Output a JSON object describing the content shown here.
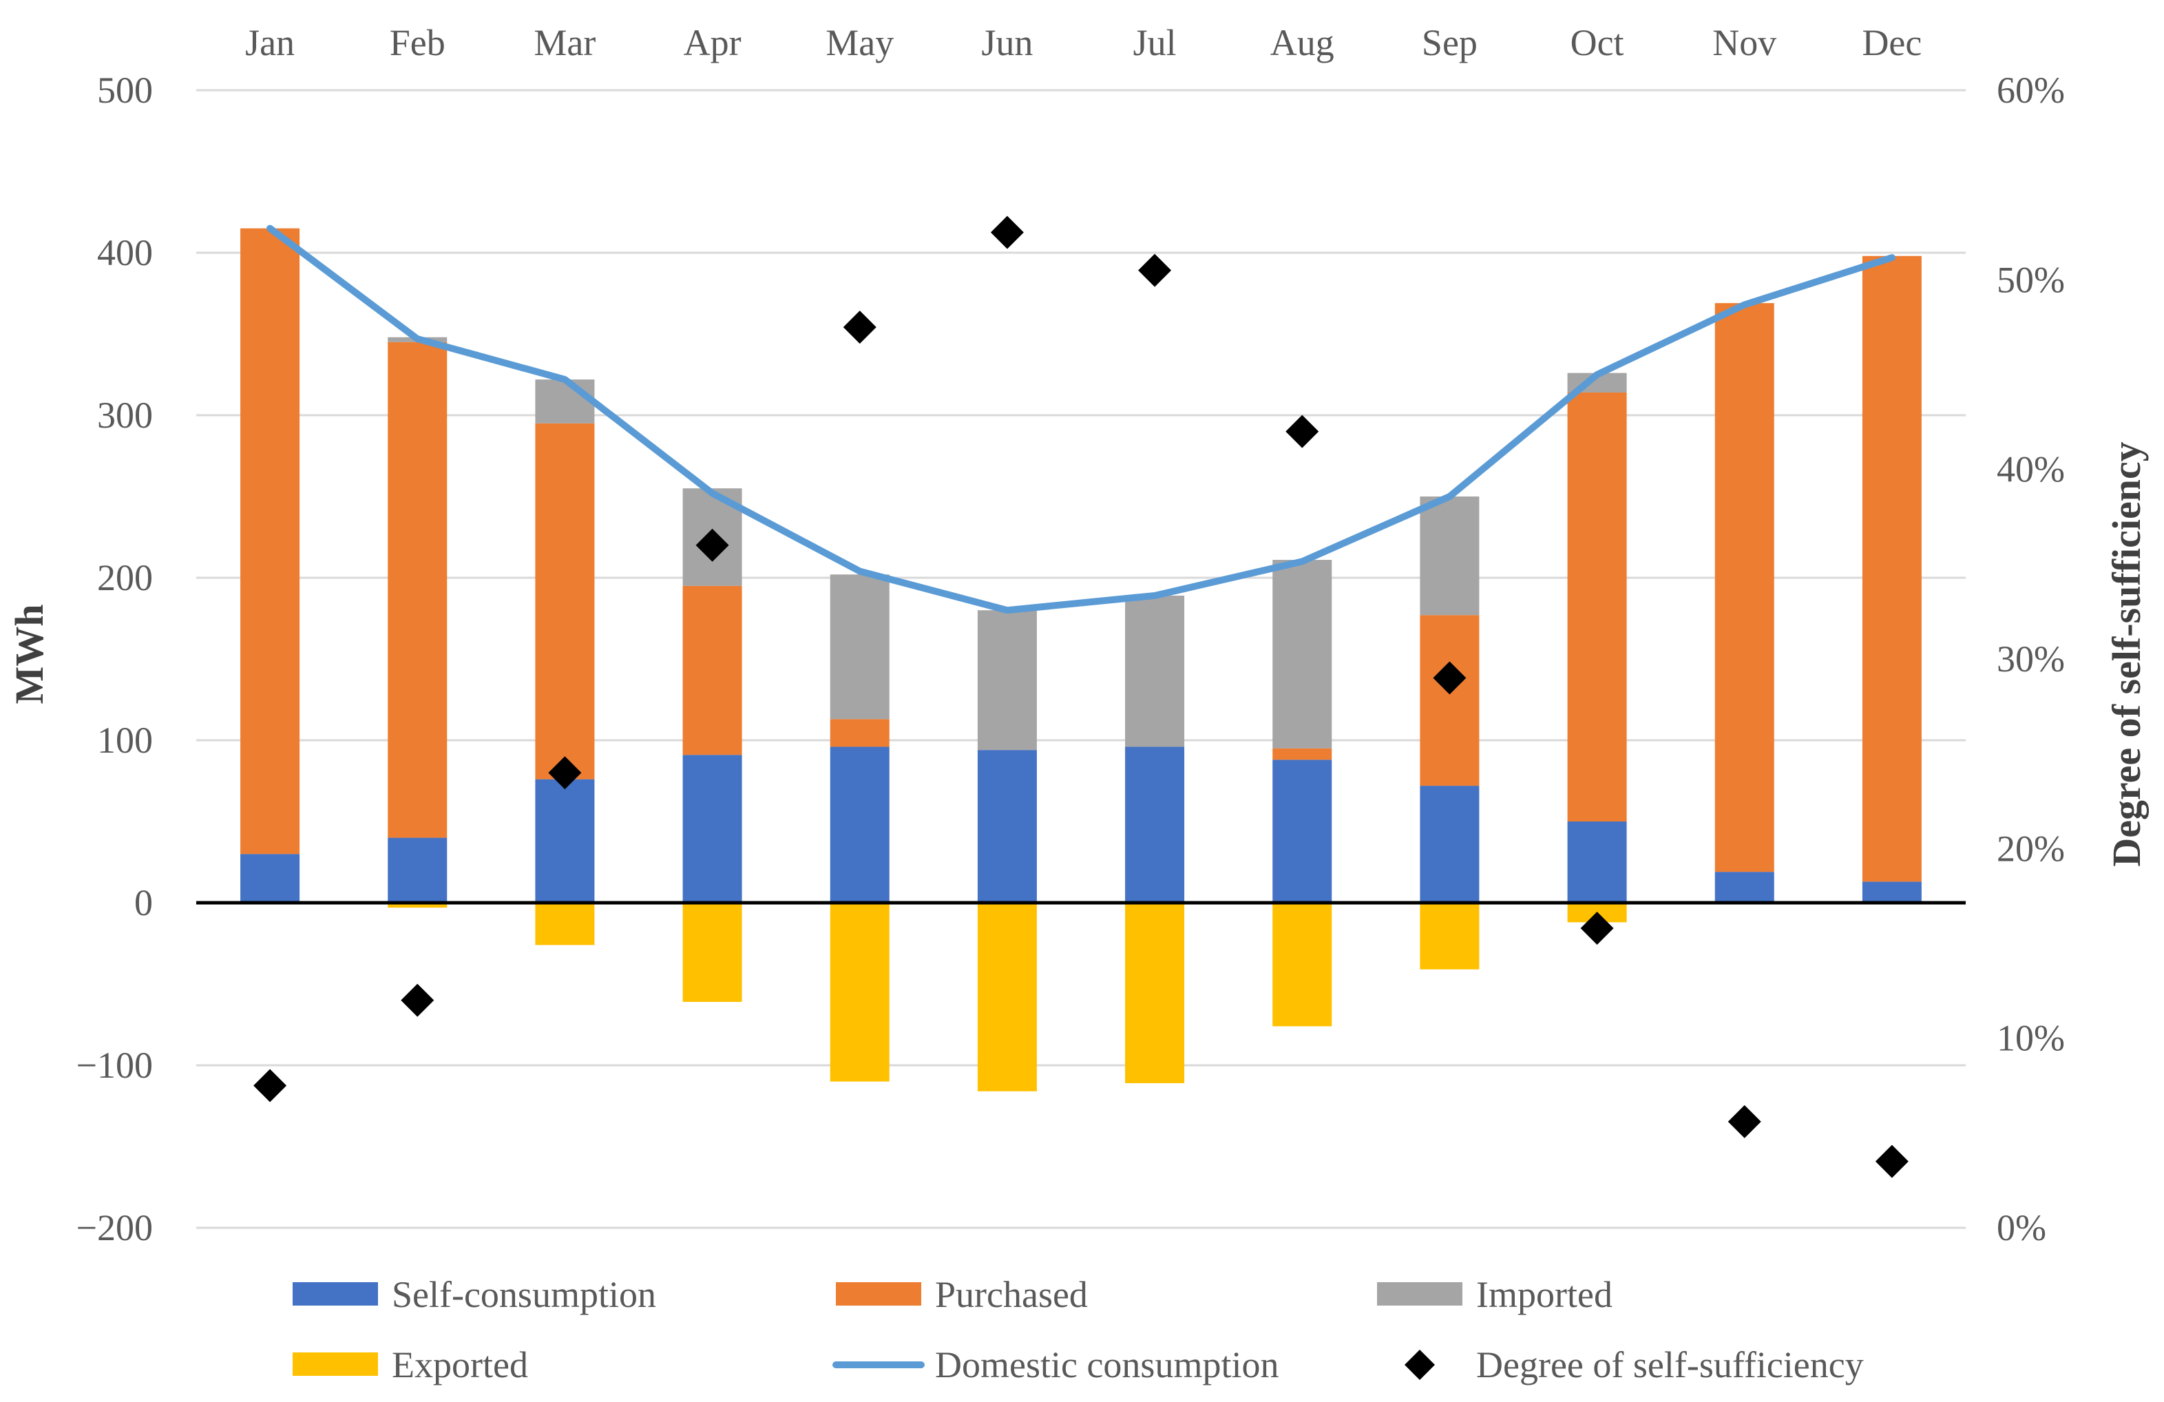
{
  "chart_data": {
    "type": "bar",
    "subtype": "stacked-bar-with-line-and-markers",
    "categories": [
      "Jan",
      "Feb",
      "Mar",
      "Apr",
      "May",
      "Jun",
      "Jul",
      "Aug",
      "Sep",
      "Oct",
      "Nov",
      "Dec"
    ],
    "series": [
      {
        "name": "Self-consumption",
        "kind": "bar",
        "axis": "left",
        "color": "#4472C4",
        "values": [
          30,
          40,
          76,
          91,
          96,
          94,
          96,
          88,
          72,
          50,
          19,
          13
        ]
      },
      {
        "name": "Purchased",
        "kind": "bar",
        "axis": "left",
        "color": "#ED7D31",
        "values": [
          385,
          305,
          219,
          104,
          17,
          0,
          0,
          7,
          105,
          264,
          350,
          385
        ]
      },
      {
        "name": "Imported",
        "kind": "bar",
        "axis": "left",
        "color": "#A5A5A5",
        "values": [
          0,
          3,
          27,
          60,
          89,
          86,
          93,
          116,
          73,
          12,
          0,
          0
        ]
      },
      {
        "name": "Exported",
        "kind": "bar",
        "axis": "left",
        "color": "#FFC000",
        "values": [
          0,
          -3,
          -26,
          -61,
          -110,
          -116,
          -111,
          -76,
          -41,
          -12,
          0,
          0
        ]
      },
      {
        "name": "Domestic consumption",
        "kind": "line",
        "axis": "left",
        "color": "#5B9BD5",
        "values": [
          415,
          347,
          322,
          252,
          204,
          180,
          189,
          210,
          250,
          325,
          368,
          397
        ]
      },
      {
        "name": "Degree of self-sufficiency",
        "kind": "marker",
        "axis": "right",
        "color": "#000000",
        "values": [
          7.5,
          12.0,
          24.0,
          36.0,
          47.5,
          52.5,
          50.5,
          42.0,
          29.0,
          15.8,
          5.6,
          3.5
        ]
      }
    ],
    "ylabel": "MWh",
    "y2label": "Degree of self-sufficiency",
    "ylim": [
      -200,
      500
    ],
    "y2lim": [
      0,
      60
    ],
    "yticks": [
      "500",
      "400",
      "300",
      "200",
      "100",
      "0",
      "−100",
      "−200"
    ],
    "y2ticks": [
      "60%",
      "50%",
      "40%",
      "30%",
      "20%",
      "10%",
      "0%"
    ],
    "legend": [
      "Self-consumption",
      "Purchased",
      "Imported",
      "Exported",
      "Domestic consumption",
      "Degree of self-sufficiency"
    ],
    "legend_position": "bottom",
    "grid": true
  }
}
